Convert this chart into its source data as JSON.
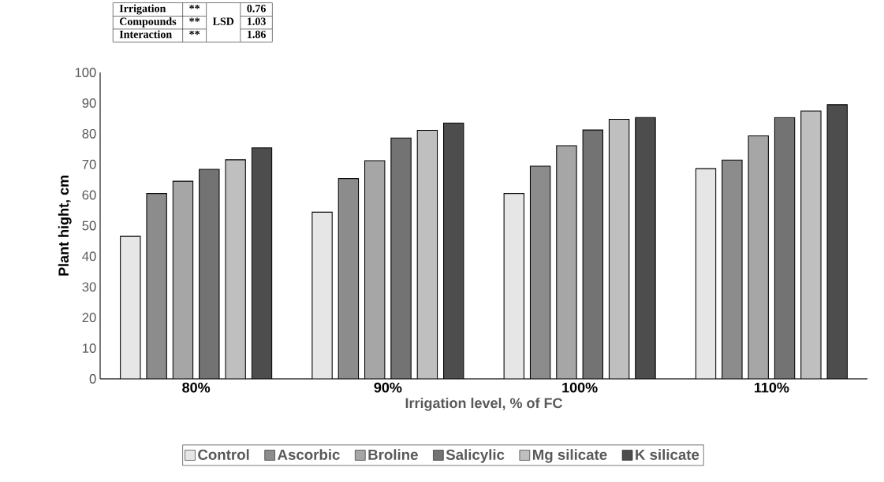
{
  "chart_data": {
    "type": "bar",
    "xlabel": "Irrigation level, % of FC",
    "ylabel": "Plant hight, cm",
    "categories": [
      "80%",
      "90%",
      "100%",
      "110%"
    ],
    "ylim": [
      0,
      100
    ],
    "yticks": [
      0,
      10,
      20,
      30,
      40,
      50,
      60,
      70,
      80,
      90,
      100
    ],
    "legend": "bottom",
    "annotations": [
      "Irrigation",
      "**",
      "0.76",
      "Compounds",
      "**",
      "1.03",
      "Interaction",
      "**",
      "1.86",
      "LSD"
    ],
    "series": [
      {
        "name": "Control",
        "color": "#e6e6e6",
        "values": [
          46.5,
          54.4,
          60.5,
          68.6
        ]
      },
      {
        "name": "Ascorbic",
        "color": "#8c8c8c",
        "values": [
          60.5,
          65.4,
          69.4,
          71.4
        ]
      },
      {
        "name": "Broline",
        "color": "#a6a6a6",
        "values": [
          64.5,
          71.2,
          76.1,
          79.3
        ]
      },
      {
        "name": "Salicylic",
        "color": "#737373",
        "values": [
          68.4,
          78.6,
          81.2,
          85.3
        ]
      },
      {
        "name": "Mg silicate",
        "color": "#bfbfbf",
        "values": [
          71.5,
          81.1,
          84.7,
          87.4
        ]
      },
      {
        "name": "K silicate",
        "color": "#4d4d4d",
        "values": [
          75.4,
          83.5,
          85.3,
          89.5
        ]
      }
    ]
  }
}
